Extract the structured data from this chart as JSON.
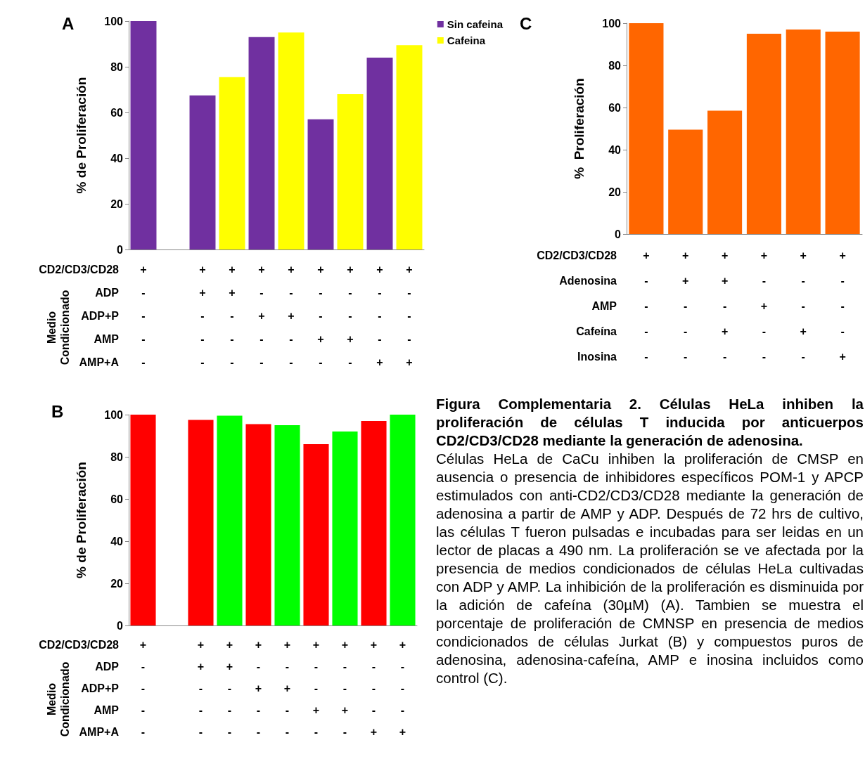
{
  "chart_data": [
    {
      "type": "bar",
      "title": "A",
      "ylabel": "% de Proliferación",
      "stacked": true,
      "legend": "top right",
      "grid": false,
      "ylim": [
        0,
        100
      ],
      "yticks": [
        0,
        20,
        40,
        60,
        80,
        100
      ],
      "categories": [
        "+\n-\n-\n-\n-",
        null,
        "+\n+\n-\n-\n-",
        "+\n+\n-\n-\n-",
        "+\n-\n+\n-\n-",
        "+\n-\n+\n-\n-",
        "+\n-\n-\n+\n-",
        "+\n-\n-\n+\n-",
        "+\n-\n-\n-\n+",
        "+\n-\n-\n-\n+"
      ],
      "series": [
        {
          "name": "Sin cafeina",
          "color": "#7030a0",
          "values": [
            100,
            null,
            67.5,
            null,
            93,
            null,
            57,
            null,
            84,
            null
          ]
        },
        {
          "name": "Cafeina",
          "color": "#ffff00",
          "values": [
            null,
            null,
            null,
            75.5,
            null,
            95,
            null,
            68,
            null,
            89.5
          ]
        }
      ],
      "annotations": [
        "CD2/CD3/CD28",
        "ADP",
        "ADP+P",
        "AMP",
        "AMP+A",
        "Medio Condicionado"
      ]
    },
    {
      "type": "bar",
      "title": "B",
      "ylabel": "% de Proliferación",
      "stacked": true,
      "grid": false,
      "ylim": [
        0,
        100
      ],
      "yticks": [
        0,
        20,
        40,
        60,
        80,
        100
      ],
      "categories": [
        "+\n-\n-\n-\n-",
        null,
        "+\n+\n-\n-\n-",
        "+\n+\n-\n-\n-",
        "+\n-\n+\n-\n-",
        "+\n-\n+\n-\n-",
        "+\n-\n-\n+\n-",
        "+\n-\n-\n+\n-",
        "+\n-\n-\n-\n+",
        "+\n-\n-\n-\n+"
      ],
      "series": [
        {
          "color": "#ff0000",
          "values": [
            100,
            null,
            97.5,
            null,
            95.5,
            null,
            86,
            null,
            97,
            null
          ]
        },
        {
          "color": "#00ff00",
          "values": [
            null,
            null,
            null,
            99.5,
            null,
            95,
            null,
            92,
            null,
            100
          ]
        }
      ],
      "annotations": [
        "CD2/CD3/CD28",
        "ADP",
        "ADP+P",
        "AMP",
        "AMP+A",
        "Medio Condicionado"
      ]
    },
    {
      "type": "bar",
      "title": "C",
      "ylabel": "%  Proliferación",
      "grid": false,
      "ylim": [
        0,
        100
      ],
      "yticks": [
        0,
        20,
        40,
        60,
        80,
        100
      ],
      "categories": [
        "+\n-\n-\n-\n-",
        "+\n+\n-\n-\n-",
        "+\n+\n-\n+\n-",
        "+\n-\n+\n-\n-",
        "+\n-\n-\n+\n-",
        "+\n-\n-\n-\n+"
      ],
      "series": [
        {
          "color": "#ff6600",
          "values": [
            100,
            49.5,
            58.5,
            95,
            97,
            96
          ]
        }
      ],
      "annotations": [
        "CD2/CD3/CD28",
        "Adenosina",
        "AMP",
        "Cafeína",
        "Inosina"
      ]
    },
    {
      "type": "other",
      "title": "Figura Complementaria 2. Células HeLa inhiben la proliferación de células T inducida por anticuerpos CD2/CD3/CD28 mediante la generación de adenosina.",
      "annotations": [
        "Células HeLa de CaCu inhiben la proliferación de CMSP en ausencia o presencia de inhibidores específicos POM-1 y APCP estimulados con anti-CD2/CD3/CD28 mediante la generación de adenosina a partir de AMP y ADP. Después de 72 hrs de cultivo, las células T fueron pulsadas e incubadas para ser leidas en un lector de placas a 490 nm. La proliferación se ve afectada por la presencia de medios condicionados de células HeLa cultivadas con ADP y AMP. La inhibición de la proliferación es disminuida por la adición de cafeína (30µM) (A). Tambien se muestra el porcentaje de proliferación de CMNSP en presencia de medios condicionados de células Jurkat (B) y compuestos puros de adenosina, adenosina-cafeína, AMP e inosina incluidos como control (C)."
      ]
    }
  ]
}
